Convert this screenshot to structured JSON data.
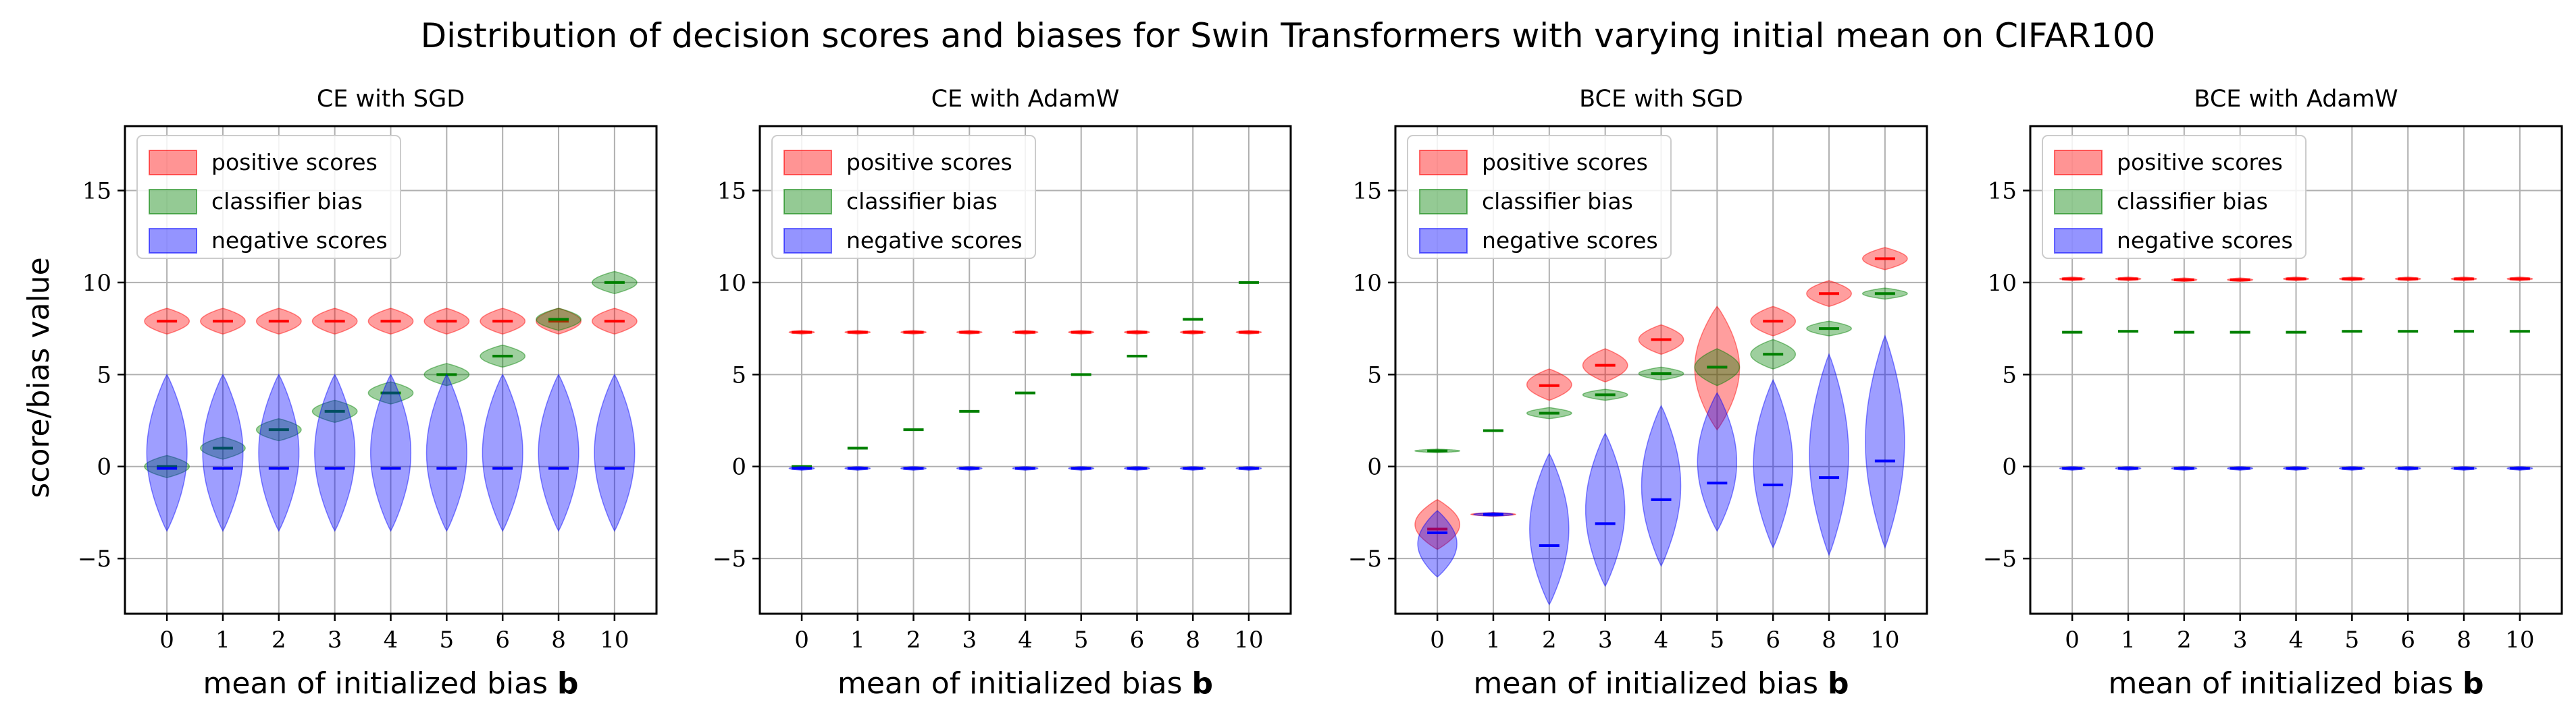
{
  "figure": {
    "title": "Distribution of decision scores and biases for Swin Transformers with varying initial mean on CIFAR100",
    "ylabel": "score/bias value",
    "xlabel_prefix": "mean of initialized bias",
    "xlabel_bold": "b"
  },
  "legend": [
    {
      "label": "positive scores",
      "color": "#ff0000"
    },
    {
      "label": "classifier bias",
      "color": "#008000"
    },
    {
      "label": "negative scores",
      "color": "#0000ff"
    }
  ],
  "colors": {
    "positive": "#ff0000",
    "bias": "#008000",
    "negative": "#0000ff",
    "grid": "#b0b0b0"
  },
  "chart_data": [
    {
      "type": "violin",
      "title": "CE with SGD",
      "categories": [
        "0",
        "1",
        "2",
        "3",
        "4",
        "5",
        "6",
        "8",
        "10"
      ],
      "ylim": [
        -8,
        18.5
      ],
      "yticks": [
        -5,
        0,
        5,
        10,
        15
      ],
      "grid": true,
      "legend_position": "top-left",
      "series": [
        {
          "name": "positive scores",
          "medians": [
            7.9,
            7.9,
            7.9,
            7.9,
            7.9,
            7.9,
            7.9,
            7.9,
            7.9
          ],
          "lo": [
            7.2,
            7.2,
            7.2,
            7.2,
            7.2,
            7.2,
            7.2,
            7.2,
            7.2
          ],
          "hi": [
            8.6,
            8.6,
            8.6,
            8.6,
            8.6,
            8.6,
            8.6,
            8.6,
            8.6
          ],
          "width": 0.8
        },
        {
          "name": "classifier bias",
          "medians": [
            0.0,
            1.0,
            2.0,
            3.0,
            4.0,
            5.0,
            6.0,
            8.0,
            10.0
          ],
          "lo": [
            -0.6,
            0.4,
            1.4,
            2.4,
            3.4,
            4.4,
            5.4,
            7.4,
            9.4
          ],
          "hi": [
            0.6,
            1.6,
            2.6,
            3.6,
            4.6,
            5.6,
            6.6,
            8.6,
            10.6
          ],
          "width": 0.8
        },
        {
          "name": "negative scores",
          "medians": [
            -0.1,
            -0.1,
            -0.1,
            -0.1,
            -0.1,
            -0.1,
            -0.1,
            -0.1,
            -0.1
          ],
          "lo": [
            -3.5,
            -3.5,
            -3.5,
            -3.5,
            -3.5,
            -3.5,
            -3.5,
            -3.5,
            -3.5
          ],
          "hi": [
            5.0,
            5.0,
            5.0,
            5.0,
            5.0,
            5.0,
            5.0,
            5.0,
            5.0
          ],
          "width": 0.72
        }
      ]
    },
    {
      "type": "violin",
      "title": "CE with AdamW",
      "categories": [
        "0",
        "1",
        "2",
        "3",
        "4",
        "5",
        "6",
        "8",
        "10"
      ],
      "ylim": [
        -8,
        18.5
      ],
      "yticks": [
        -5,
        0,
        5,
        10,
        15
      ],
      "grid": true,
      "legend_position": "top-left",
      "series": [
        {
          "name": "positive scores",
          "medians": [
            7.3,
            7.3,
            7.3,
            7.3,
            7.3,
            7.3,
            7.3,
            7.3,
            7.3
          ],
          "lo": [
            7.2,
            7.2,
            7.2,
            7.2,
            7.2,
            7.2,
            7.2,
            7.2,
            7.2
          ],
          "hi": [
            7.4,
            7.4,
            7.4,
            7.4,
            7.4,
            7.4,
            7.4,
            7.4,
            7.4
          ],
          "width": 0.45
        },
        {
          "name": "classifier bias",
          "medians": [
            0.0,
            1.0,
            2.0,
            3.0,
            4.0,
            5.0,
            6.0,
            8.0,
            10.0
          ],
          "lo": [
            -0.05,
            0.95,
            1.95,
            2.95,
            3.95,
            4.95,
            5.95,
            7.95,
            9.95
          ],
          "hi": [
            0.05,
            1.05,
            2.05,
            3.05,
            4.05,
            5.05,
            6.05,
            8.05,
            10.05
          ],
          "width": 0.45
        },
        {
          "name": "negative scores",
          "medians": [
            -0.1,
            -0.1,
            -0.1,
            -0.1,
            -0.1,
            -0.1,
            -0.1,
            -0.1,
            -0.1
          ],
          "lo": [
            -0.2,
            -0.2,
            -0.2,
            -0.2,
            -0.2,
            -0.2,
            -0.2,
            -0.2,
            -0.2
          ],
          "hi": [
            0.0,
            0.0,
            0.0,
            0.0,
            0.0,
            0.0,
            0.0,
            0.0,
            0.0
          ],
          "width": 0.45
        }
      ]
    },
    {
      "type": "violin",
      "title": "BCE with SGD",
      "categories": [
        "0",
        "1",
        "2",
        "3",
        "4",
        "5",
        "6",
        "8",
        "10"
      ],
      "ylim": [
        -8,
        18.5
      ],
      "yticks": [
        -5,
        0,
        5,
        10,
        15
      ],
      "grid": true,
      "legend_position": "top-left",
      "series": [
        {
          "name": "positive scores",
          "medians": [
            -3.4,
            -2.6,
            4.4,
            5.5,
            6.9,
            5.4,
            7.9,
            9.4,
            11.3
          ],
          "lo": [
            -4.5,
            -2.7,
            3.6,
            4.6,
            6.1,
            2.0,
            7.1,
            8.7,
            10.7
          ],
          "hi": [
            -1.8,
            -2.5,
            5.3,
            6.4,
            7.7,
            8.7,
            8.7,
            10.1,
            11.9
          ],
          "width": 0.8
        },
        {
          "name": "classifier bias",
          "medians": [
            0.85,
            1.95,
            2.9,
            3.9,
            5.05,
            5.4,
            6.1,
            7.5,
            9.4
          ],
          "lo": [
            0.75,
            1.9,
            2.6,
            3.6,
            4.7,
            4.4,
            5.3,
            7.1,
            9.1
          ],
          "hi": [
            0.95,
            2.0,
            3.2,
            4.2,
            5.4,
            6.4,
            6.9,
            7.9,
            9.7
          ],
          "width": 0.8
        },
        {
          "name": "negative scores",
          "medians": [
            -3.6,
            -2.6,
            -4.3,
            -3.1,
            -1.8,
            -0.9,
            -1.0,
            -0.6,
            0.3
          ],
          "lo": [
            -6.0,
            -2.7,
            -7.5,
            -6.5,
            -5.4,
            -3.5,
            -4.4,
            -4.8,
            -4.4
          ],
          "hi": [
            -2.4,
            -2.5,
            0.7,
            1.8,
            3.3,
            4.0,
            4.7,
            6.1,
            7.1
          ],
          "width": 0.7
        }
      ]
    },
    {
      "type": "violin",
      "title": "BCE with AdamW",
      "categories": [
        "0",
        "1",
        "2",
        "3",
        "4",
        "5",
        "6",
        "8",
        "10"
      ],
      "ylim": [
        -8,
        18.5
      ],
      "yticks": [
        -5,
        0,
        5,
        10,
        15
      ],
      "grid": true,
      "legend_position": "top-left",
      "series": [
        {
          "name": "positive scores",
          "medians": [
            10.2,
            10.2,
            10.15,
            10.15,
            10.2,
            10.2,
            10.2,
            10.2,
            10.2
          ],
          "lo": [
            10.1,
            10.1,
            10.05,
            10.05,
            10.1,
            10.1,
            10.1,
            10.1,
            10.1
          ],
          "hi": [
            10.3,
            10.3,
            10.25,
            10.25,
            10.3,
            10.3,
            10.3,
            10.3,
            10.3
          ],
          "width": 0.45
        },
        {
          "name": "classifier bias",
          "medians": [
            7.3,
            7.35,
            7.3,
            7.3,
            7.3,
            7.35,
            7.35,
            7.35,
            7.35
          ],
          "lo": [
            7.25,
            7.3,
            7.25,
            7.25,
            7.25,
            7.3,
            7.3,
            7.3,
            7.3
          ],
          "hi": [
            7.35,
            7.4,
            7.35,
            7.35,
            7.35,
            7.4,
            7.4,
            7.4,
            7.4
          ],
          "width": 0.45
        },
        {
          "name": "negative scores",
          "medians": [
            -0.1,
            -0.1,
            -0.1,
            -0.1,
            -0.1,
            -0.1,
            -0.1,
            -0.1,
            -0.1
          ],
          "lo": [
            -0.2,
            -0.2,
            -0.2,
            -0.2,
            -0.2,
            -0.2,
            -0.2,
            -0.2,
            -0.2
          ],
          "hi": [
            0.0,
            0.0,
            0.0,
            0.0,
            0.0,
            0.0,
            0.0,
            0.0,
            0.0
          ],
          "width": 0.45
        }
      ]
    }
  ]
}
